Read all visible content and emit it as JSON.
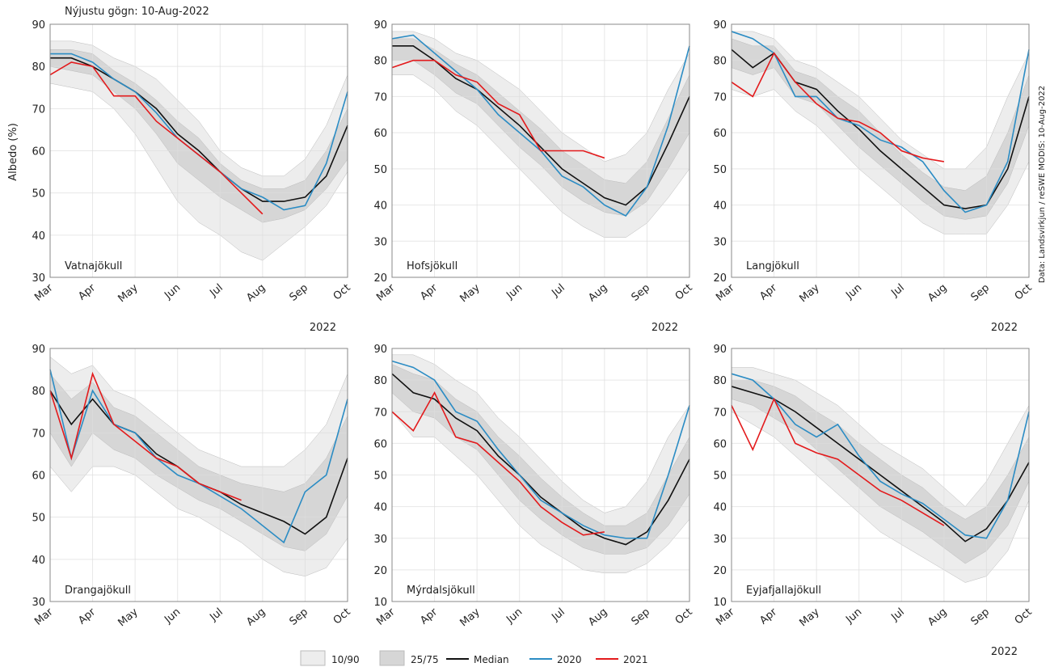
{
  "title": "Nýjustu gögn: 10-Aug-2022",
  "y_label": "Albedo (%)",
  "source": "Data: Landsvirkjun / reSWE MODIS: 10-Aug-2022",
  "chart_data": [
    {
      "type": "line",
      "title": "Vatnajökull",
      "xlabel": "2022",
      "categories": [
        "Mar",
        null,
        "Apr",
        null,
        "May",
        null,
        "Jun",
        null,
        "Jul",
        null,
        "Aug",
        null,
        "Sep",
        null,
        "Oct"
      ],
      "ylim": [
        30,
        90
      ],
      "yticks": [
        30,
        40,
        50,
        60,
        70,
        80,
        90
      ],
      "grid": true,
      "series": [
        {
          "name": "10/90",
          "kind": "band",
          "color": "#ededed",
          "low": [
            76,
            75,
            74,
            70,
            64,
            56,
            48,
            43,
            40,
            36,
            34,
            38,
            42,
            47,
            55
          ],
          "high": [
            86,
            86,
            85,
            82,
            80,
            77,
            72,
            67,
            60,
            56,
            54,
            54,
            58,
            66,
            78
          ]
        },
        {
          "name": "25/75",
          "kind": "band",
          "color": "#d6d6d6",
          "low": [
            80,
            79,
            78,
            74,
            70,
            64,
            57,
            53,
            49,
            46,
            43,
            44,
            46,
            51,
            58
          ],
          "high": [
            84,
            84,
            83,
            79,
            76,
            72,
            67,
            63,
            57,
            53,
            51,
            51,
            53,
            60,
            70
          ]
        },
        {
          "name": "Median",
          "color": "#111111",
          "values": [
            82,
            82,
            80,
            77,
            74,
            70,
            64,
            60,
            55,
            51,
            48,
            48,
            49,
            54,
            66
          ]
        },
        {
          "name": "2020",
          "color": "#2b8cc4",
          "values": [
            83,
            83,
            81,
            77,
            74,
            69,
            63,
            59,
            55,
            51,
            49,
            46,
            47,
            57,
            74
          ]
        },
        {
          "name": "2021",
          "color": "#e31a1c",
          "values": [
            78,
            81,
            80,
            73,
            73,
            67,
            63,
            59,
            55,
            50,
            45,
            null,
            null,
            null,
            null
          ]
        }
      ]
    },
    {
      "type": "line",
      "title": "Hofsjökull",
      "xlabel": "2022",
      "categories": [
        "Mar",
        null,
        "Apr",
        null,
        "May",
        null,
        "Jun",
        null,
        "Jul",
        null,
        "Aug",
        null,
        "Sep",
        null,
        "Oct"
      ],
      "ylim": [
        20,
        90
      ],
      "yticks": [
        20,
        30,
        40,
        50,
        60,
        70,
        80,
        90
      ],
      "grid": true,
      "series": [
        {
          "name": "10/90",
          "kind": "band",
          "color": "#ededed",
          "low": [
            76,
            76,
            72,
            66,
            62,
            56,
            50,
            44,
            38,
            34,
            31,
            31,
            35,
            42,
            50
          ],
          "high": [
            88,
            88,
            86,
            82,
            80,
            76,
            72,
            66,
            60,
            56,
            52,
            54,
            60,
            72,
            82
          ]
        },
        {
          "name": "25/75",
          "kind": "band",
          "color": "#d6d6d6",
          "low": [
            80,
            80,
            76,
            71,
            68,
            62,
            56,
            51,
            45,
            41,
            38,
            37,
            41,
            50,
            60
          ],
          "high": [
            86,
            86,
            83,
            79,
            76,
            71,
            66,
            61,
            55,
            51,
            47,
            46,
            52,
            64,
            76
          ]
        },
        {
          "name": "Median",
          "color": "#111111",
          "values": [
            84,
            84,
            80,
            75,
            72,
            67,
            62,
            56,
            50,
            46,
            42,
            40,
            45,
            57,
            70
          ]
        },
        {
          "name": "2020",
          "color": "#2b8cc4",
          "values": [
            86,
            87,
            82,
            77,
            72,
            65,
            60,
            55,
            48,
            45,
            40,
            37,
            45,
            62,
            84
          ]
        },
        {
          "name": "2021",
          "color": "#e31a1c",
          "values": [
            78,
            80,
            80,
            76,
            74,
            68,
            65,
            55,
            55,
            55,
            53,
            null,
            null,
            null,
            null
          ]
        }
      ]
    },
    {
      "type": "line",
      "title": "Langjökull",
      "xlabel": "2022",
      "categories": [
        "Mar",
        null,
        "Apr",
        null,
        "May",
        null,
        "Jun",
        null,
        "Jul",
        null,
        "Aug",
        null,
        "Sep",
        null,
        "Oct"
      ],
      "ylim": [
        20,
        90
      ],
      "yticks": [
        20,
        30,
        40,
        50,
        60,
        70,
        80,
        90
      ],
      "grid": true,
      "series": [
        {
          "name": "10/90",
          "kind": "band",
          "color": "#ededed",
          "low": [
            72,
            70,
            72,
            66,
            62,
            56,
            50,
            45,
            40,
            35,
            32,
            32,
            32,
            40,
            52
          ],
          "high": [
            88,
            88,
            86,
            80,
            78,
            74,
            70,
            64,
            58,
            54,
            50,
            50,
            56,
            70,
            82
          ]
        },
        {
          "name": "25/75",
          "kind": "band",
          "color": "#d6d6d6",
          "low": [
            78,
            76,
            78,
            70,
            68,
            62,
            56,
            51,
            46,
            41,
            37,
            36,
            37,
            46,
            62
          ],
          "high": [
            86,
            84,
            84,
            77,
            75,
            70,
            66,
            60,
            54,
            49,
            45,
            44,
            48,
            60,
            76
          ]
        },
        {
          "name": "Median",
          "color": "#111111",
          "values": [
            83,
            78,
            82,
            74,
            72,
            66,
            61,
            55,
            50,
            45,
            40,
            39,
            40,
            50,
            70
          ]
        },
        {
          "name": "2020",
          "color": "#2b8cc4",
          "values": [
            88,
            86,
            82,
            70,
            70,
            64,
            62,
            58,
            56,
            52,
            44,
            38,
            40,
            52,
            83
          ]
        },
        {
          "name": "2021",
          "color": "#e31a1c",
          "values": [
            74,
            70,
            82,
            74,
            68,
            64,
            63,
            60,
            55,
            53,
            52,
            null,
            null,
            null,
            null
          ]
        }
      ]
    },
    {
      "type": "line",
      "title": "Drangajökull",
      "categories": [
        "Mar",
        null,
        "Apr",
        null,
        "May",
        null,
        "Jun",
        null,
        "Jul",
        null,
        "Aug",
        null,
        "Sep",
        null,
        "Oct"
      ],
      "ylim": [
        30,
        90
      ],
      "yticks": [
        30,
        40,
        50,
        60,
        70,
        80,
        90
      ],
      "grid": true,
      "series": [
        {
          "name": "10/90",
          "kind": "band",
          "color": "#ededed",
          "low": [
            62,
            56,
            62,
            62,
            60,
            56,
            52,
            50,
            47,
            44,
            40,
            37,
            36,
            38,
            45
          ],
          "high": [
            88,
            84,
            86,
            80,
            78,
            74,
            70,
            66,
            64,
            62,
            62,
            62,
            66,
            72,
            84
          ]
        },
        {
          "name": "25/75",
          "kind": "band",
          "color": "#d6d6d6",
          "low": [
            70,
            62,
            70,
            66,
            64,
            60,
            57,
            54,
            52,
            49,
            46,
            43,
            42,
            46,
            55
          ],
          "high": [
            84,
            78,
            82,
            76,
            74,
            70,
            66,
            62,
            60,
            58,
            57,
            56,
            58,
            64,
            74
          ]
        },
        {
          "name": "Median",
          "color": "#111111",
          "values": [
            80,
            72,
            78,
            72,
            70,
            65,
            62,
            58,
            56,
            53,
            51,
            49,
            46,
            50,
            64
          ]
        },
        {
          "name": "2020",
          "color": "#2b8cc4",
          "values": [
            85,
            64,
            80,
            72,
            70,
            64,
            60,
            58,
            55,
            52,
            48,
            44,
            56,
            60,
            78
          ]
        },
        {
          "name": "2021",
          "color": "#e31a1c",
          "values": [
            80,
            64,
            84,
            72,
            68,
            64,
            62,
            58,
            56,
            54,
            null,
            null,
            null,
            null,
            null
          ]
        }
      ]
    },
    {
      "type": "line",
      "title": "Mýrdalsjökull",
      "categories": [
        "Mar",
        null,
        "Apr",
        null,
        "May",
        null,
        "Jun",
        null,
        "Jul",
        null,
        "Aug",
        null,
        "Sep",
        null,
        "Oct"
      ],
      "ylim": [
        10,
        90
      ],
      "yticks": [
        10,
        20,
        30,
        40,
        50,
        60,
        70,
        80,
        90
      ],
      "grid": true,
      "series": [
        {
          "name": "10/90",
          "kind": "band",
          "color": "#ededed",
          "low": [
            70,
            62,
            62,
            56,
            50,
            42,
            34,
            28,
            24,
            20,
            19,
            19,
            22,
            28,
            36
          ],
          "high": [
            88,
            88,
            85,
            80,
            76,
            68,
            62,
            55,
            48,
            42,
            38,
            40,
            48,
            62,
            72
          ]
        },
        {
          "name": "25/75",
          "kind": "band",
          "color": "#d6d6d6",
          "low": [
            76,
            70,
            68,
            62,
            58,
            50,
            42,
            36,
            31,
            27,
            25,
            25,
            27,
            34,
            44
          ],
          "high": [
            85,
            82,
            80,
            74,
            70,
            62,
            56,
            49,
            43,
            38,
            34,
            34,
            38,
            50,
            62
          ]
        },
        {
          "name": "Median",
          "color": "#111111",
          "values": [
            82,
            76,
            74,
            68,
            64,
            56,
            50,
            43,
            38,
            33,
            30,
            28,
            32,
            42,
            55
          ]
        },
        {
          "name": "2020",
          "color": "#2b8cc4",
          "values": [
            86,
            84,
            80,
            70,
            67,
            58,
            50,
            42,
            38,
            34,
            31,
            30,
            30,
            50,
            72
          ]
        },
        {
          "name": "2021",
          "color": "#e31a1c",
          "values": [
            70,
            64,
            76,
            62,
            60,
            54,
            48,
            40,
            35,
            31,
            32,
            null,
            null,
            null,
            null
          ]
        }
      ]
    },
    {
      "type": "line",
      "title": "Eyjafjallajökull",
      "xlabel": "2022",
      "categories": [
        "Mar",
        null,
        "Apr",
        null,
        "May",
        null,
        "Jun",
        null,
        "Jul",
        null,
        "Aug",
        null,
        "Sep",
        null,
        "Oct"
      ],
      "ylim": [
        10,
        90
      ],
      "yticks": [
        10,
        20,
        30,
        40,
        50,
        60,
        70,
        80,
        90
      ],
      "grid": true,
      "series": [
        {
          "name": "10/90",
          "kind": "band",
          "color": "#ededed",
          "low": [
            70,
            66,
            62,
            56,
            50,
            44,
            38,
            32,
            28,
            24,
            20,
            16,
            18,
            26,
            42
          ],
          "high": [
            84,
            84,
            82,
            80,
            76,
            72,
            66,
            60,
            56,
            52,
            46,
            40,
            48,
            60,
            72
          ]
        },
        {
          "name": "25/75",
          "kind": "band",
          "color": "#d6d6d6",
          "low": [
            74,
            72,
            68,
            64,
            58,
            52,
            46,
            40,
            36,
            32,
            27,
            22,
            26,
            34,
            48
          ],
          "high": [
            80,
            80,
            78,
            75,
            70,
            66,
            60,
            55,
            50,
            46,
            40,
            36,
            40,
            50,
            62
          ]
        },
        {
          "name": "Median",
          "color": "#111111",
          "values": [
            78,
            76,
            74,
            70,
            65,
            60,
            55,
            50,
            45,
            40,
            35,
            29,
            33,
            42,
            54
          ]
        },
        {
          "name": "2020",
          "color": "#2b8cc4",
          "values": [
            82,
            80,
            74,
            66,
            62,
            66,
            56,
            48,
            44,
            41,
            36,
            31,
            30,
            42,
            70
          ]
        },
        {
          "name": "2021",
          "color": "#e31a1c",
          "values": [
            72,
            58,
            74,
            60,
            57,
            55,
            50,
            45,
            42,
            38,
            34,
            null,
            null,
            null,
            null
          ]
        }
      ]
    }
  ]
}
